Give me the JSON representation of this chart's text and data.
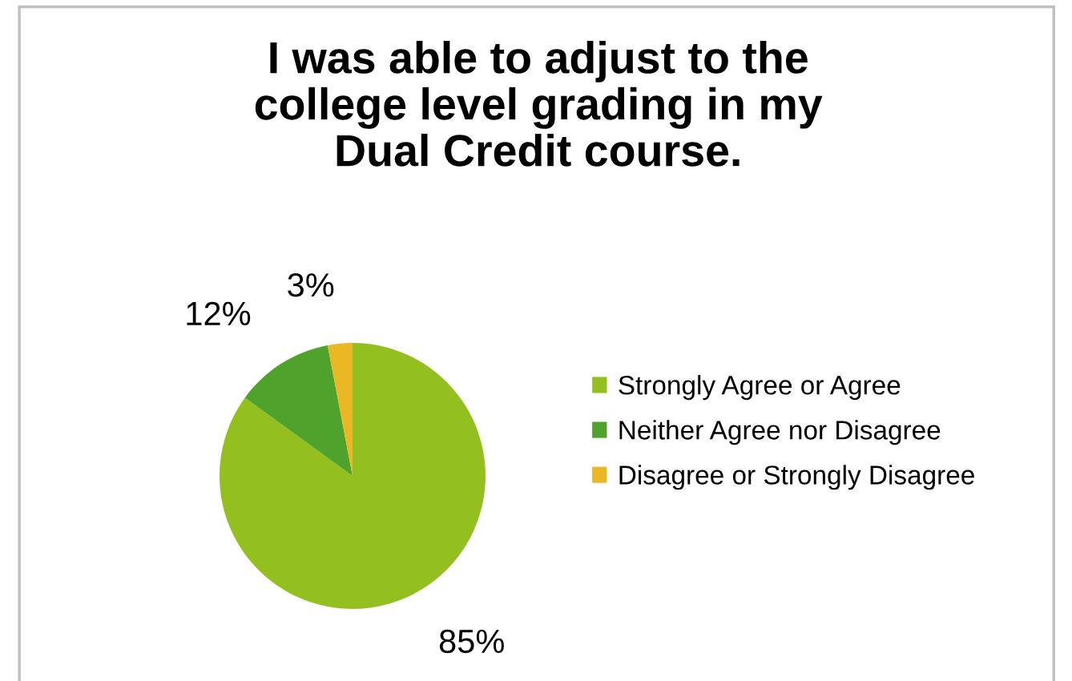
{
  "chart_data": {
    "type": "pie",
    "title": "I was able to adjust to the\ncollege level grading in my\nDual Credit course.",
    "categories": [
      "Strongly Agree or Agree",
      "Neither Agree nor Disagree",
      "Disagree or Strongly Disagree"
    ],
    "values": [
      85,
      12,
      3
    ],
    "colors": [
      "#93c01f",
      "#4fa22c",
      "#e9b824"
    ],
    "value_labels": [
      "85%",
      "12%",
      "3%"
    ],
    "legend": "right"
  }
}
